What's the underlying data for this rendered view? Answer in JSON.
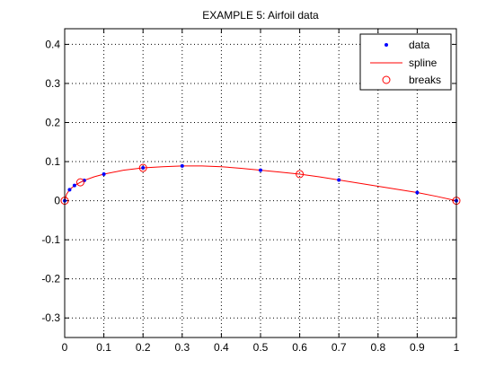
{
  "chart_data": {
    "type": "line",
    "title": "EXAMPLE 5: Airfoil data",
    "xlabel": "",
    "ylabel": "",
    "xlim": [
      0,
      1
    ],
    "ylim": [
      -0.35,
      0.44
    ],
    "xticks": [
      0,
      0.1,
      0.2,
      0.3,
      0.4,
      0.5,
      0.6,
      0.7,
      0.8,
      0.9,
      1
    ],
    "xtick_labels": [
      "0",
      "0.1",
      "0.2",
      "0.3",
      "0.4",
      "0.5",
      "0.6",
      "0.7",
      "0.8",
      "0.9",
      "1"
    ],
    "yticks": [
      -0.3,
      -0.2,
      -0.1,
      0,
      0.1,
      0.2,
      0.3,
      0.4
    ],
    "ytick_labels": [
      "-0.3",
      "-0.2",
      "-0.1",
      "0",
      "0.1",
      "0.2",
      "0.3",
      "0.4"
    ],
    "grid": true,
    "legend_position": "top-right",
    "legend": [
      "data",
      "spline",
      "breaks"
    ],
    "series": [
      {
        "name": "data",
        "style": "points",
        "color": "#0000ff",
        "x": [
          0,
          0.0125,
          0.025,
          0.05,
          0.1,
          0.2,
          0.3,
          0.5,
          0.7,
          0.9,
          1
        ],
        "y": [
          0,
          0.028,
          0.039,
          0.052,
          0.068,
          0.084,
          0.089,
          0.078,
          0.053,
          0.021,
          0
        ]
      },
      {
        "name": "spline",
        "style": "line",
        "color": "#ff0000",
        "x": [
          0,
          0.005,
          0.0125,
          0.025,
          0.04,
          0.05,
          0.075,
          0.1,
          0.15,
          0.2,
          0.25,
          0.3,
          0.35,
          0.4,
          0.45,
          0.5,
          0.55,
          0.6,
          0.65,
          0.7,
          0.75,
          0.8,
          0.85,
          0.9,
          0.95,
          1
        ],
        "y": [
          0,
          0.017,
          0.028,
          0.039,
          0.047,
          0.052,
          0.061,
          0.068,
          0.078,
          0.084,
          0.087,
          0.089,
          0.089,
          0.087,
          0.083,
          0.078,
          0.073,
          0.068,
          0.061,
          0.053,
          0.045,
          0.037,
          0.029,
          0.021,
          0.011,
          0
        ]
      },
      {
        "name": "breaks",
        "style": "markers",
        "color": "#ff0000",
        "x": [
          0,
          0.04,
          0.2,
          0.6,
          1
        ],
        "y": [
          0,
          0.047,
          0.084,
          0.068,
          0
        ]
      }
    ]
  }
}
